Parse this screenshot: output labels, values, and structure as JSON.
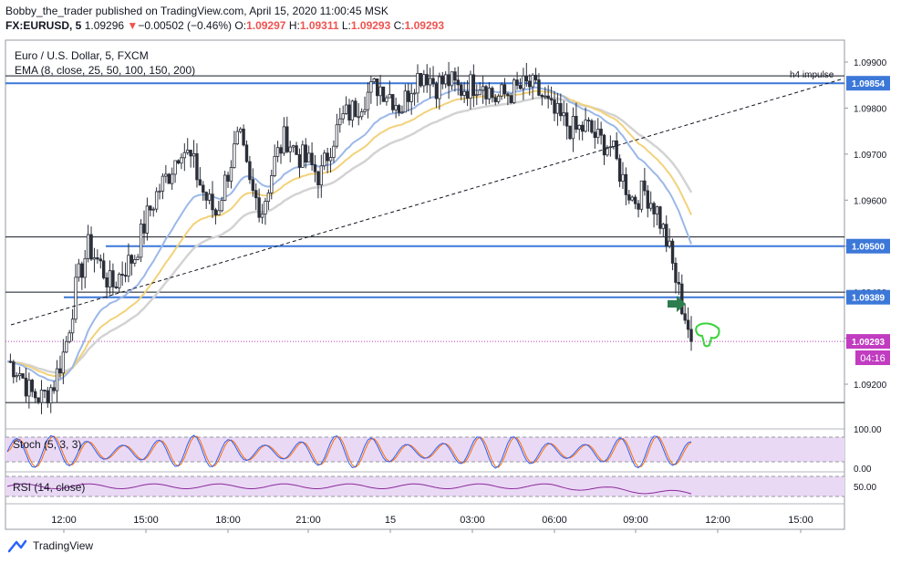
{
  "header": {
    "publisher": "Bobby_the_trader published on TradingView.com, April 15, 2020 11:00:45 MSK",
    "symbol": "FX:EURUSD, 5",
    "last": "1.09296",
    "change": "−0.00502 (−0.46%)",
    "o_label": "O:",
    "o": "1.09297",
    "h_label": "H:",
    "h": "1.09311",
    "l_label": "L:",
    "l": "1.09293",
    "c_label": "C:",
    "c": "1.09293"
  },
  "legend": {
    "title": "Euro / U.S. Dollar, 5, FXCM",
    "ema": "EMA (8, close, 25, 50, 100, 150, 200)",
    "stoch": "Stoch (5, 3, 3)",
    "rsi": "RSI (14, close)"
  },
  "annotation": {
    "trendline_label": "h4 impulse"
  },
  "countdown": "04:16",
  "footer": {
    "brand": "TradingView"
  },
  "colors": {
    "ema_blue": "#9bb8e8",
    "ema_yellow": "#f2d27a",
    "ema_grey": "#d3d3d3",
    "hline_blue": "#3c78d8",
    "price_tag": "#c13cc1",
    "candle": "#2a2e39",
    "stoch_k": "#2962ff",
    "stoch_d": "#ff6d00",
    "osc_band": "#ead9f5",
    "rsi_line": "#8a2a9a",
    "arrow_green": "#2e7d4f",
    "hand_green": "#3ad23a"
  },
  "chart_data": {
    "type": "candlestick",
    "symbol": "EURUSD",
    "timeframe": "5",
    "price_axis": {
      "ticks": [
        1.099,
        1.098,
        1.097,
        1.096,
        1.095,
        1.094,
        1.093,
        1.092
      ],
      "tick_labels": [
        "1.09900",
        "1.09800",
        "1.09700",
        "1.09600",
        "1.09500",
        "1.09400",
        "1.09300",
        "1.09200"
      ],
      "ylim": [
        1.0913,
        1.0993
      ]
    },
    "time_axis": {
      "ticks": [
        "12:00",
        "15:00",
        "18:00",
        "21:00",
        "15",
        "03:00",
        "06:00",
        "09:00",
        "12:00",
        "15:00"
      ]
    },
    "labeled_levels": [
      {
        "price": 1.09854,
        "label": "1.09854",
        "color": "#3c78d8"
      },
      {
        "price": 1.095,
        "label": "1.09500",
        "color": "#3c78d8"
      },
      {
        "price": 1.09389,
        "label": "1.09389",
        "color": "#3c78d8"
      },
      {
        "price": 1.09293,
        "label": "1.09293",
        "color": "#c13cc1"
      }
    ],
    "black_levels": [
      1.0987,
      1.0952,
      1.094,
      1.0916
    ],
    "close_path": [
      1.0925,
      1.0923,
      1.0918,
      1.0917,
      1.092,
      1.0928,
      1.0942,
      1.095,
      1.0946,
      1.0941,
      1.0945,
      1.0948,
      1.0956,
      1.0962,
      1.0966,
      1.0972,
      1.0968,
      1.0961,
      1.0957,
      1.0966,
      1.0974,
      1.0962,
      1.0958,
      1.0968,
      1.0974,
      1.097,
      1.0968,
      1.0965,
      1.0973,
      1.0978,
      1.098,
      1.0983,
      1.0985,
      1.0983,
      1.098,
      1.0986,
      1.0988,
      1.0985,
      1.0986,
      1.0984,
      1.0985,
      1.0986,
      1.0982,
      1.0983,
      1.0984,
      1.0985,
      1.0983,
      1.0979,
      1.0977,
      1.0975,
      1.0976,
      1.0973,
      1.0972,
      1.0965,
      1.096,
      1.0962,
      1.0958,
      1.095,
      1.0939,
      1.093
    ],
    "oscillators": {
      "stoch": {
        "range": [
          0,
          100
        ],
        "ticks": [
          "100.00",
          "0.00"
        ]
      },
      "rsi": {
        "range": [
          0,
          100
        ],
        "ticks": [
          "50.00"
        ]
      }
    }
  }
}
